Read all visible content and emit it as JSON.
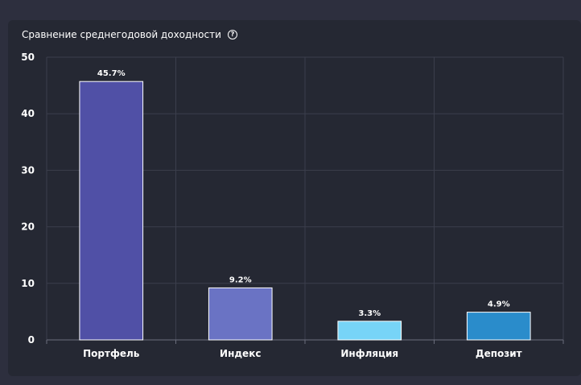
{
  "chart_data": {
    "type": "bar",
    "title": "Сравнение среднегодовой доходности",
    "categories": [
      "Портфель",
      "Индекс",
      "Инфляция",
      "Депозит"
    ],
    "values": [
      45.7,
      9.2,
      3.3,
      4.9
    ],
    "data_labels": [
      "45.7%",
      "9.2%",
      "3.3%",
      "4.9%"
    ],
    "colors": [
      "#5050a6",
      "#6a73c4",
      "#77d4f7",
      "#2a8ccb"
    ],
    "y_ticks": [
      0,
      10,
      20,
      30,
      40,
      50
    ],
    "ylim": [
      0,
      50
    ],
    "grid": true,
    "legend": "none"
  },
  "ui": {
    "help_icon": "question-circle-icon"
  }
}
